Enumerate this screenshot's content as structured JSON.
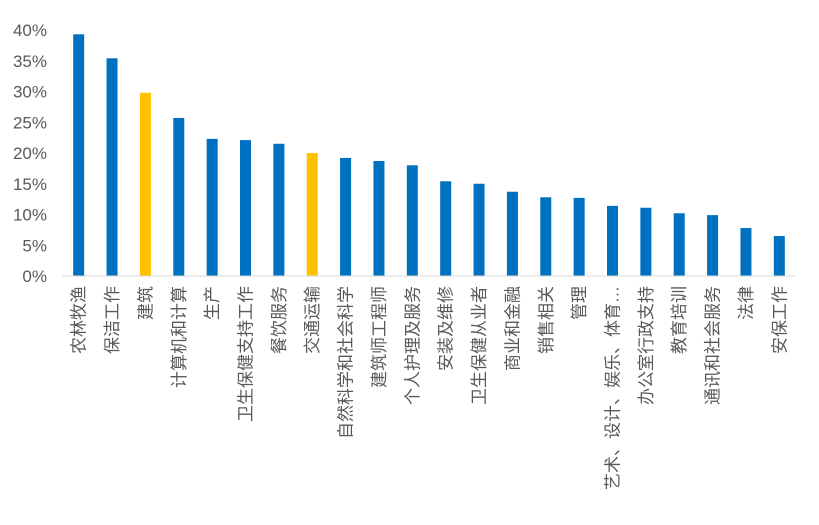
{
  "chart_data": {
    "type": "bar",
    "title": "",
    "xlabel": "",
    "ylabel": "",
    "ylim": [
      0,
      40
    ],
    "yticks": [
      "0%",
      "5%",
      "10%",
      "15%",
      "20%",
      "25%",
      "30%",
      "35%",
      "40%"
    ],
    "grid": false,
    "legend": "none",
    "categories": [
      "农林牧渔",
      "保洁工作",
      "建筑",
      "计算机和计算",
      "生产",
      "卫生保健支持工作",
      "餐饮服务",
      "交通运输",
      "自然科学和社会科学",
      "建筑师工程师",
      "个人护理及服务",
      "安装及维修",
      "卫生保健从业者",
      "商业和金融",
      "销售相关",
      "管理",
      "艺术、设计、娱乐、体育…",
      "办公室行政支持",
      "教育培训",
      "通讯和社会服务",
      "法律",
      "安保工作"
    ],
    "values": [
      39.3,
      35.4,
      29.8,
      25.7,
      22.3,
      22.1,
      21.5,
      20.0,
      19.2,
      18.7,
      18.0,
      15.4,
      15.0,
      13.7,
      12.8,
      12.7,
      11.4,
      11.1,
      10.2,
      9.9,
      7.8,
      6.5
    ],
    "highlighted": [
      "建筑",
      "交通运输"
    ],
    "colors": {
      "default": "#0070C0",
      "highlight": "#FFC000",
      "axis": "#D9D9D9"
    }
  }
}
